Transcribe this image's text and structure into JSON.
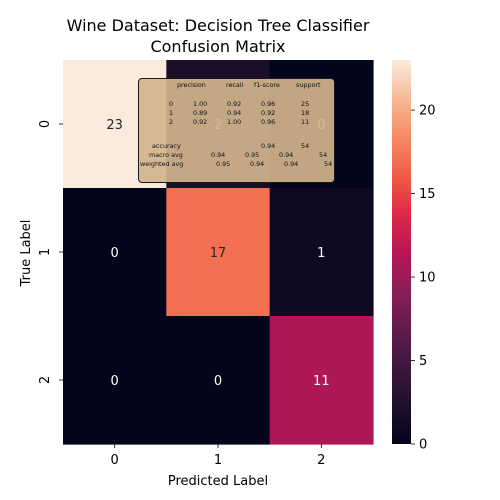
{
  "chart_data": {
    "type": "heatmap",
    "title": "Wine Dataset: Decision Tree Classifier\nConfusion Matrix",
    "xlabel": "Predicted Label",
    "ylabel": "True Label",
    "x_categories": [
      "0",
      "1",
      "2"
    ],
    "y_categories": [
      "0",
      "1",
      "2"
    ],
    "values": [
      [
        23,
        2,
        0
      ],
      [
        0,
        17,
        1
      ],
      [
        0,
        0,
        11
      ]
    ],
    "colorbar": {
      "min": 0,
      "max": 23,
      "ticks": [
        "0",
        "5",
        "10",
        "15",
        "20"
      ],
      "colormap": "rocket"
    },
    "annotation": {
      "header": [
        "precision",
        "recall",
        "f1-score",
        "support"
      ],
      "rows": [
        {
          "label": "0",
          "precision": "1.00",
          "recall": "0.92",
          "f1": "0.96",
          "support": "25"
        },
        {
          "label": "1",
          "precision": "0.89",
          "recall": "0.94",
          "f1": "0.92",
          "support": "18"
        },
        {
          "label": "2",
          "precision": "0.92",
          "recall": "1.00",
          "f1": "0.96",
          "support": "11"
        }
      ],
      "accuracy": {
        "label": "accuracy",
        "f1": "0.94",
        "support": "54"
      },
      "macro_avg": {
        "label": "macro avg",
        "precision": "0.94",
        "recall": "0.95",
        "f1": "0.94",
        "support": "54"
      },
      "weighted_avg": {
        "label": "weighted avg",
        "precision": "0.95",
        "recall": "0.94",
        "f1": "0.94",
        "support": "54"
      }
    }
  }
}
